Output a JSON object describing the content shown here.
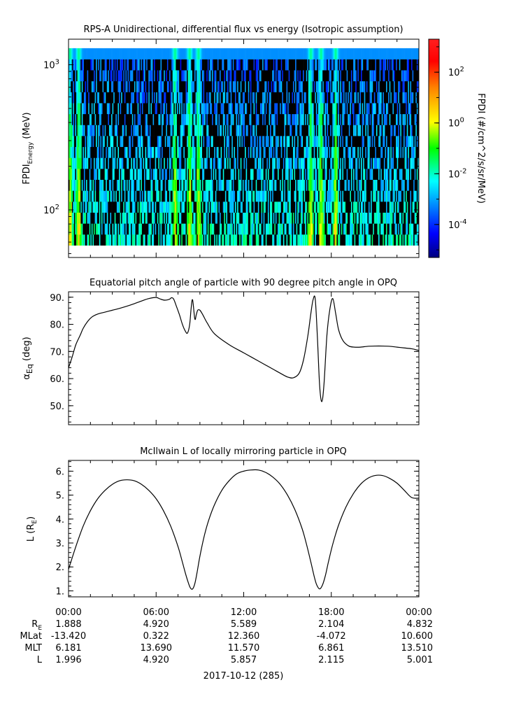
{
  "chart_data": [
    {
      "type": "heatmap",
      "title": "RPS-A Unidirectional, differential flux vs energy (Isotropic assumption)",
      "ylabel_main": "FPDI",
      "ylabel_sub": "Energy",
      "ylabel_unit": " (MeV)",
      "yscale": "log",
      "ylim": [
        47,
        1500
      ],
      "yticks": [
        {
          "v": 100,
          "label": "10",
          "exp": "2"
        },
        {
          "v": 1000,
          "label": "10",
          "exp": "3"
        }
      ],
      "xlim_hours": [
        0,
        24
      ],
      "energy_range_mev": [
        57,
        1300
      ],
      "colorbar": {
        "label": "FPDI (#/cm^2/s/sr/MeV)",
        "scale": "log",
        "range_log10": [
          -5.3,
          3.3
        ],
        "ticks": [
          {
            "v": 2,
            "label": "10",
            "exp": "2"
          },
          {
            "v": 0,
            "label": "10",
            "exp": "0"
          },
          {
            "v": -2,
            "label": "10",
            "exp": "-2"
          },
          {
            "v": -4,
            "label": "10",
            "exp": "-4"
          }
        ]
      },
      "enhancement_bands_hours": [
        0.1,
        0.7,
        7.3,
        8.3,
        8.9,
        16.6,
        17.3,
        18.3
      ]
    },
    {
      "type": "line",
      "title": "Equatorial pitch angle of particle with 90 degree pitch angle in OPQ",
      "ylabel_main": "α",
      "ylabel_sub": "Eq",
      "ylabel_unit": " (deg)",
      "ylim": [
        43,
        92
      ],
      "yticks": [
        50,
        60,
        70,
        80,
        90
      ],
      "xlim_hours": [
        0,
        24
      ],
      "x": [
        0,
        0.25,
        0.5,
        0.8,
        1.0,
        1.3,
        1.6,
        2.0,
        2.5,
        3.0,
        3.5,
        4.0,
        4.5,
        5.0,
        5.5,
        6.0,
        6.3,
        6.6,
        6.9,
        7.05,
        7.2,
        7.4,
        7.6,
        7.8,
        8.0,
        8.15,
        8.3,
        8.4,
        8.5,
        8.65,
        8.75,
        8.85,
        9.0,
        9.2,
        9.5,
        10.0,
        11.0,
        12.0,
        13.0,
        14.0,
        14.5,
        15.0,
        15.4,
        15.8,
        16.1,
        16.4,
        16.6,
        16.75,
        16.9,
        17.05,
        17.2,
        17.35,
        17.5,
        17.7,
        17.9,
        18.1,
        18.3,
        18.5,
        18.8,
        19.2,
        19.6,
        20.0,
        20.5,
        21.0,
        21.5,
        22.0,
        22.5,
        23.0,
        23.5,
        24.0
      ],
      "values": [
        64,
        68,
        72.5,
        76,
        78.5,
        81,
        82.7,
        83.8,
        84.5,
        85.2,
        85.9,
        86.7,
        87.6,
        88.6,
        89.5,
        89.9,
        89.3,
        88.9,
        89.2,
        89.8,
        89.3,
        86.5,
        83.5,
        80,
        77.5,
        76.8,
        80,
        86,
        89,
        82,
        83.5,
        85.2,
        85.2,
        83.5,
        80.5,
        76.5,
        72.5,
        69.5,
        66.5,
        63.5,
        62,
        60.6,
        60.3,
        62,
        67,
        76,
        84,
        89,
        89.3,
        75,
        57.5,
        51.5,
        58,
        76,
        85.5,
        89.5,
        84,
        78,
        74,
        72,
        71.6,
        71.6,
        71.9,
        72.0,
        72.0,
        71.9,
        71.6,
        71.3,
        71.0,
        70.4
      ]
    },
    {
      "type": "line",
      "title": "McIlwain L of locally mirroring particle in OPQ",
      "ylabel_main": "L (R",
      "ylabel_sub": "E",
      "ylabel_unit": ")",
      "ylim": [
        0.75,
        6.45
      ],
      "yticks": [
        1,
        2,
        3,
        4,
        5,
        6
      ],
      "xlim_hours": [
        0,
        24
      ],
      "x": [
        0,
        0.5,
        1.0,
        1.5,
        2.0,
        2.5,
        3.0,
        3.5,
        4.0,
        4.5,
        5.0,
        5.5,
        6.0,
        6.5,
        7.0,
        7.5,
        7.8,
        8.0,
        8.2,
        8.35,
        8.5,
        8.65,
        8.8,
        9.0,
        9.3,
        9.6,
        10.0,
        10.5,
        11.0,
        11.5,
        12.0,
        12.5,
        13.0,
        13.5,
        14.0,
        14.5,
        15.0,
        15.5,
        16.0,
        16.3,
        16.6,
        16.85,
        17.0,
        17.2,
        17.4,
        17.6,
        17.8,
        18.1,
        18.5,
        19.0,
        19.5,
        20.0,
        20.5,
        21.0,
        21.5,
        22.0,
        22.5,
        23.0,
        23.5,
        24.0
      ],
      "values": [
        1.9,
        2.85,
        3.7,
        4.35,
        4.85,
        5.2,
        5.45,
        5.6,
        5.64,
        5.6,
        5.45,
        5.2,
        4.85,
        4.35,
        3.7,
        2.85,
        2.2,
        1.75,
        1.35,
        1.12,
        1.08,
        1.3,
        1.75,
        2.45,
        3.3,
        3.95,
        4.6,
        5.2,
        5.6,
        5.88,
        6.0,
        6.05,
        6.05,
        5.95,
        5.75,
        5.45,
        5.0,
        4.4,
        3.6,
        2.95,
        2.2,
        1.55,
        1.25,
        1.08,
        1.25,
        1.65,
        2.2,
        2.95,
        3.75,
        4.5,
        5.05,
        5.45,
        5.7,
        5.82,
        5.82,
        5.7,
        5.5,
        5.2,
        4.9,
        4.87
      ]
    }
  ],
  "time_axis": {
    "tick_labels": [
      "00:00",
      "06:00",
      "12:00",
      "18:00",
      "00:00"
    ],
    "tick_hours": [
      0,
      6,
      12,
      18,
      24
    ]
  },
  "ephemeris": {
    "rows": [
      {
        "label": "R",
        "sub": "E",
        "values": [
          "1.888",
          "4.920",
          "5.589",
          "2.104",
          "4.832"
        ]
      },
      {
        "label": "MLat",
        "sub": "",
        "values": [
          "-13.420",
          "0.322",
          "12.360",
          "-4.072",
          "10.600"
        ]
      },
      {
        "label": "MLT",
        "sub": "",
        "values": [
          "6.181",
          "13.690",
          "11.570",
          "6.861",
          "13.510"
        ]
      },
      {
        "label": "L",
        "sub": "",
        "values": [
          "1.996",
          "4.920",
          "5.857",
          "2.115",
          "5.001"
        ]
      }
    ]
  },
  "date_label": "2017-10-12 (285)"
}
